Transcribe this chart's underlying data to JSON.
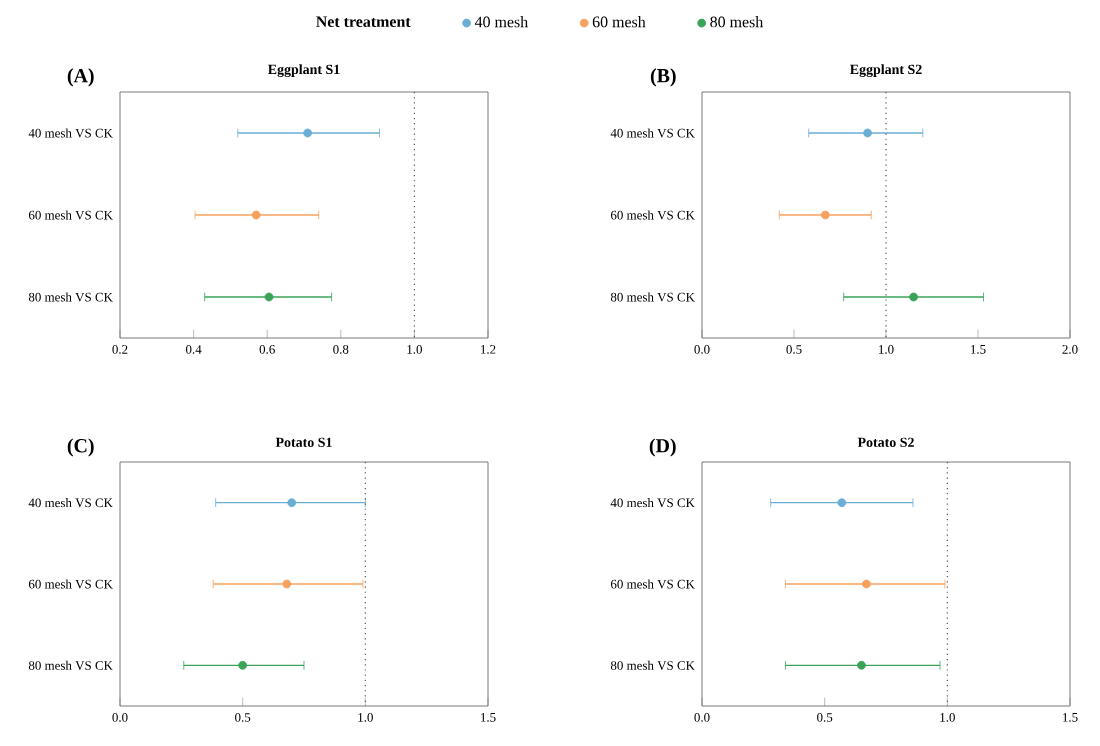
{
  "chart_data": [
    {
      "type": "scatter",
      "orientation": "horizontal",
      "title": "Eggplant S1",
      "annotations": [
        "(A)"
      ],
      "legend": "top",
      "legend_title": "Net treatment",
      "categories": [
        "40 mesh VS CK",
        "60 mesh VS CK",
        "80 mesh VS CK"
      ],
      "series": [
        {
          "name": "40 mesh",
          "color": "#6aaed6",
          "values": [
            0.71,
            null,
            null
          ],
          "errors": [
            [
              0.52,
              0.905
            ],
            null,
            null
          ]
        },
        {
          "name": "60 mesh",
          "color": "#f6a25e",
          "values": [
            null,
            0.57,
            null
          ],
          "errors": [
            null,
            [
              0.404,
              0.74
            ],
            null
          ]
        },
        {
          "name": "80 mesh",
          "color": "#3aa357",
          "values": [
            null,
            null,
            0.605
          ],
          "errors": [
            null,
            null,
            [
              0.43,
              0.775
            ]
          ]
        }
      ],
      "xlim": [
        0.2,
        1.2
      ],
      "xticks": [
        {
          "value": 0.2,
          "label": "0.2"
        },
        {
          "value": 0.4,
          "label": "0.4"
        },
        {
          "value": 0.6,
          "label": "0.6"
        },
        {
          "value": 0.8,
          "label": "0.8"
        },
        {
          "value": 1,
          "label": "1.0"
        },
        {
          "value": 1.2,
          "label": "1.2"
        }
      ],
      "ref_lines": [
        {
          "axis": "x",
          "value": 1,
          "color": "#555555",
          "line_style": "dotted"
        }
      ]
    },
    {
      "type": "scatter",
      "orientation": "horizontal",
      "title": "Eggplant S2",
      "annotations": [
        "(B)"
      ],
      "categories": [
        "40 mesh VS CK",
        "60 mesh VS CK",
        "80 mesh VS CK"
      ],
      "series": [
        {
          "color": "#6aaed6",
          "values": [
            0.9,
            null,
            null
          ],
          "errors": [
            [
              0.58,
              1.2
            ],
            null,
            null
          ]
        },
        {
          "color": "#f6a25e",
          "values": [
            null,
            0.67,
            null
          ],
          "errors": [
            null,
            [
              0.42,
              0.92
            ],
            null
          ]
        },
        {
          "color": "#3aa357",
          "values": [
            null,
            null,
            1.15
          ],
          "errors": [
            null,
            null,
            [
              0.77,
              1.53
            ]
          ]
        }
      ],
      "xlim": [
        0,
        2
      ],
      "xticks": [
        {
          "value": 0,
          "label": "0.0"
        },
        {
          "value": 0.5,
          "label": "0.5"
        },
        {
          "value": 1,
          "label": "1.0"
        },
        {
          "value": 1.5,
          "label": "1.5"
        },
        {
          "value": 2,
          "label": "2.0"
        }
      ],
      "ref_lines": [
        {
          "axis": "x",
          "value": 1,
          "color": "#555555",
          "line_style": "dotted"
        }
      ]
    },
    {
      "type": "scatter",
      "orientation": "horizontal",
      "title": "Potato S1",
      "annotations": [
        "(C)"
      ],
      "categories": [
        "40 mesh VS CK",
        "60 mesh VS CK",
        "80 mesh VS CK"
      ],
      "series": [
        {
          "color": "#6aaed6",
          "values": [
            0.7,
            null,
            null
          ],
          "errors": [
            [
              0.39,
              1.0
            ],
            null,
            null
          ]
        },
        {
          "color": "#f6a25e",
          "values": [
            null,
            0.68,
            null
          ],
          "errors": [
            null,
            [
              0.38,
              0.99
            ],
            null
          ]
        },
        {
          "color": "#3aa357",
          "values": [
            null,
            null,
            0.5
          ],
          "errors": [
            null,
            null,
            [
              0.26,
              0.75
            ]
          ]
        }
      ],
      "xlim": [
        0,
        1.5
      ],
      "xticks": [
        {
          "value": 0,
          "label": "0.0"
        },
        {
          "value": 0.5,
          "label": "0.5"
        },
        {
          "value": 1,
          "label": "1.0"
        },
        {
          "value": 1.5,
          "label": "1.5"
        }
      ],
      "ref_lines": [
        {
          "axis": "x",
          "value": 1,
          "color": "#555555",
          "line_style": "dotted"
        }
      ]
    },
    {
      "type": "scatter",
      "orientation": "horizontal",
      "title": "Potato S2",
      "annotations": [
        "(D)"
      ],
      "categories": [
        "40 mesh VS CK",
        "60 mesh VS CK",
        "80 mesh VS CK"
      ],
      "series": [
        {
          "color": "#6aaed6",
          "values": [
            0.57,
            null,
            null
          ],
          "errors": [
            [
              0.28,
              0.86
            ],
            null,
            null
          ]
        },
        {
          "color": "#f6a25e",
          "values": [
            null,
            0.67,
            null
          ],
          "errors": [
            null,
            [
              0.34,
              0.99
            ],
            null
          ]
        },
        {
          "color": "#3aa357",
          "values": [
            null,
            null,
            0.65
          ],
          "errors": [
            null,
            null,
            [
              0.34,
              0.97
            ]
          ]
        }
      ],
      "xlim": [
        0,
        1.5
      ],
      "xticks": [
        {
          "value": 0,
          "label": "0.0"
        },
        {
          "value": 0.5,
          "label": "0.5"
        },
        {
          "value": 1,
          "label": "1.0"
        },
        {
          "value": 1.5,
          "label": "1.5"
        }
      ],
      "ref_lines": [
        {
          "axis": "x",
          "value": 1,
          "color": "#555555",
          "line_style": "dotted"
        }
      ]
    }
  ]
}
